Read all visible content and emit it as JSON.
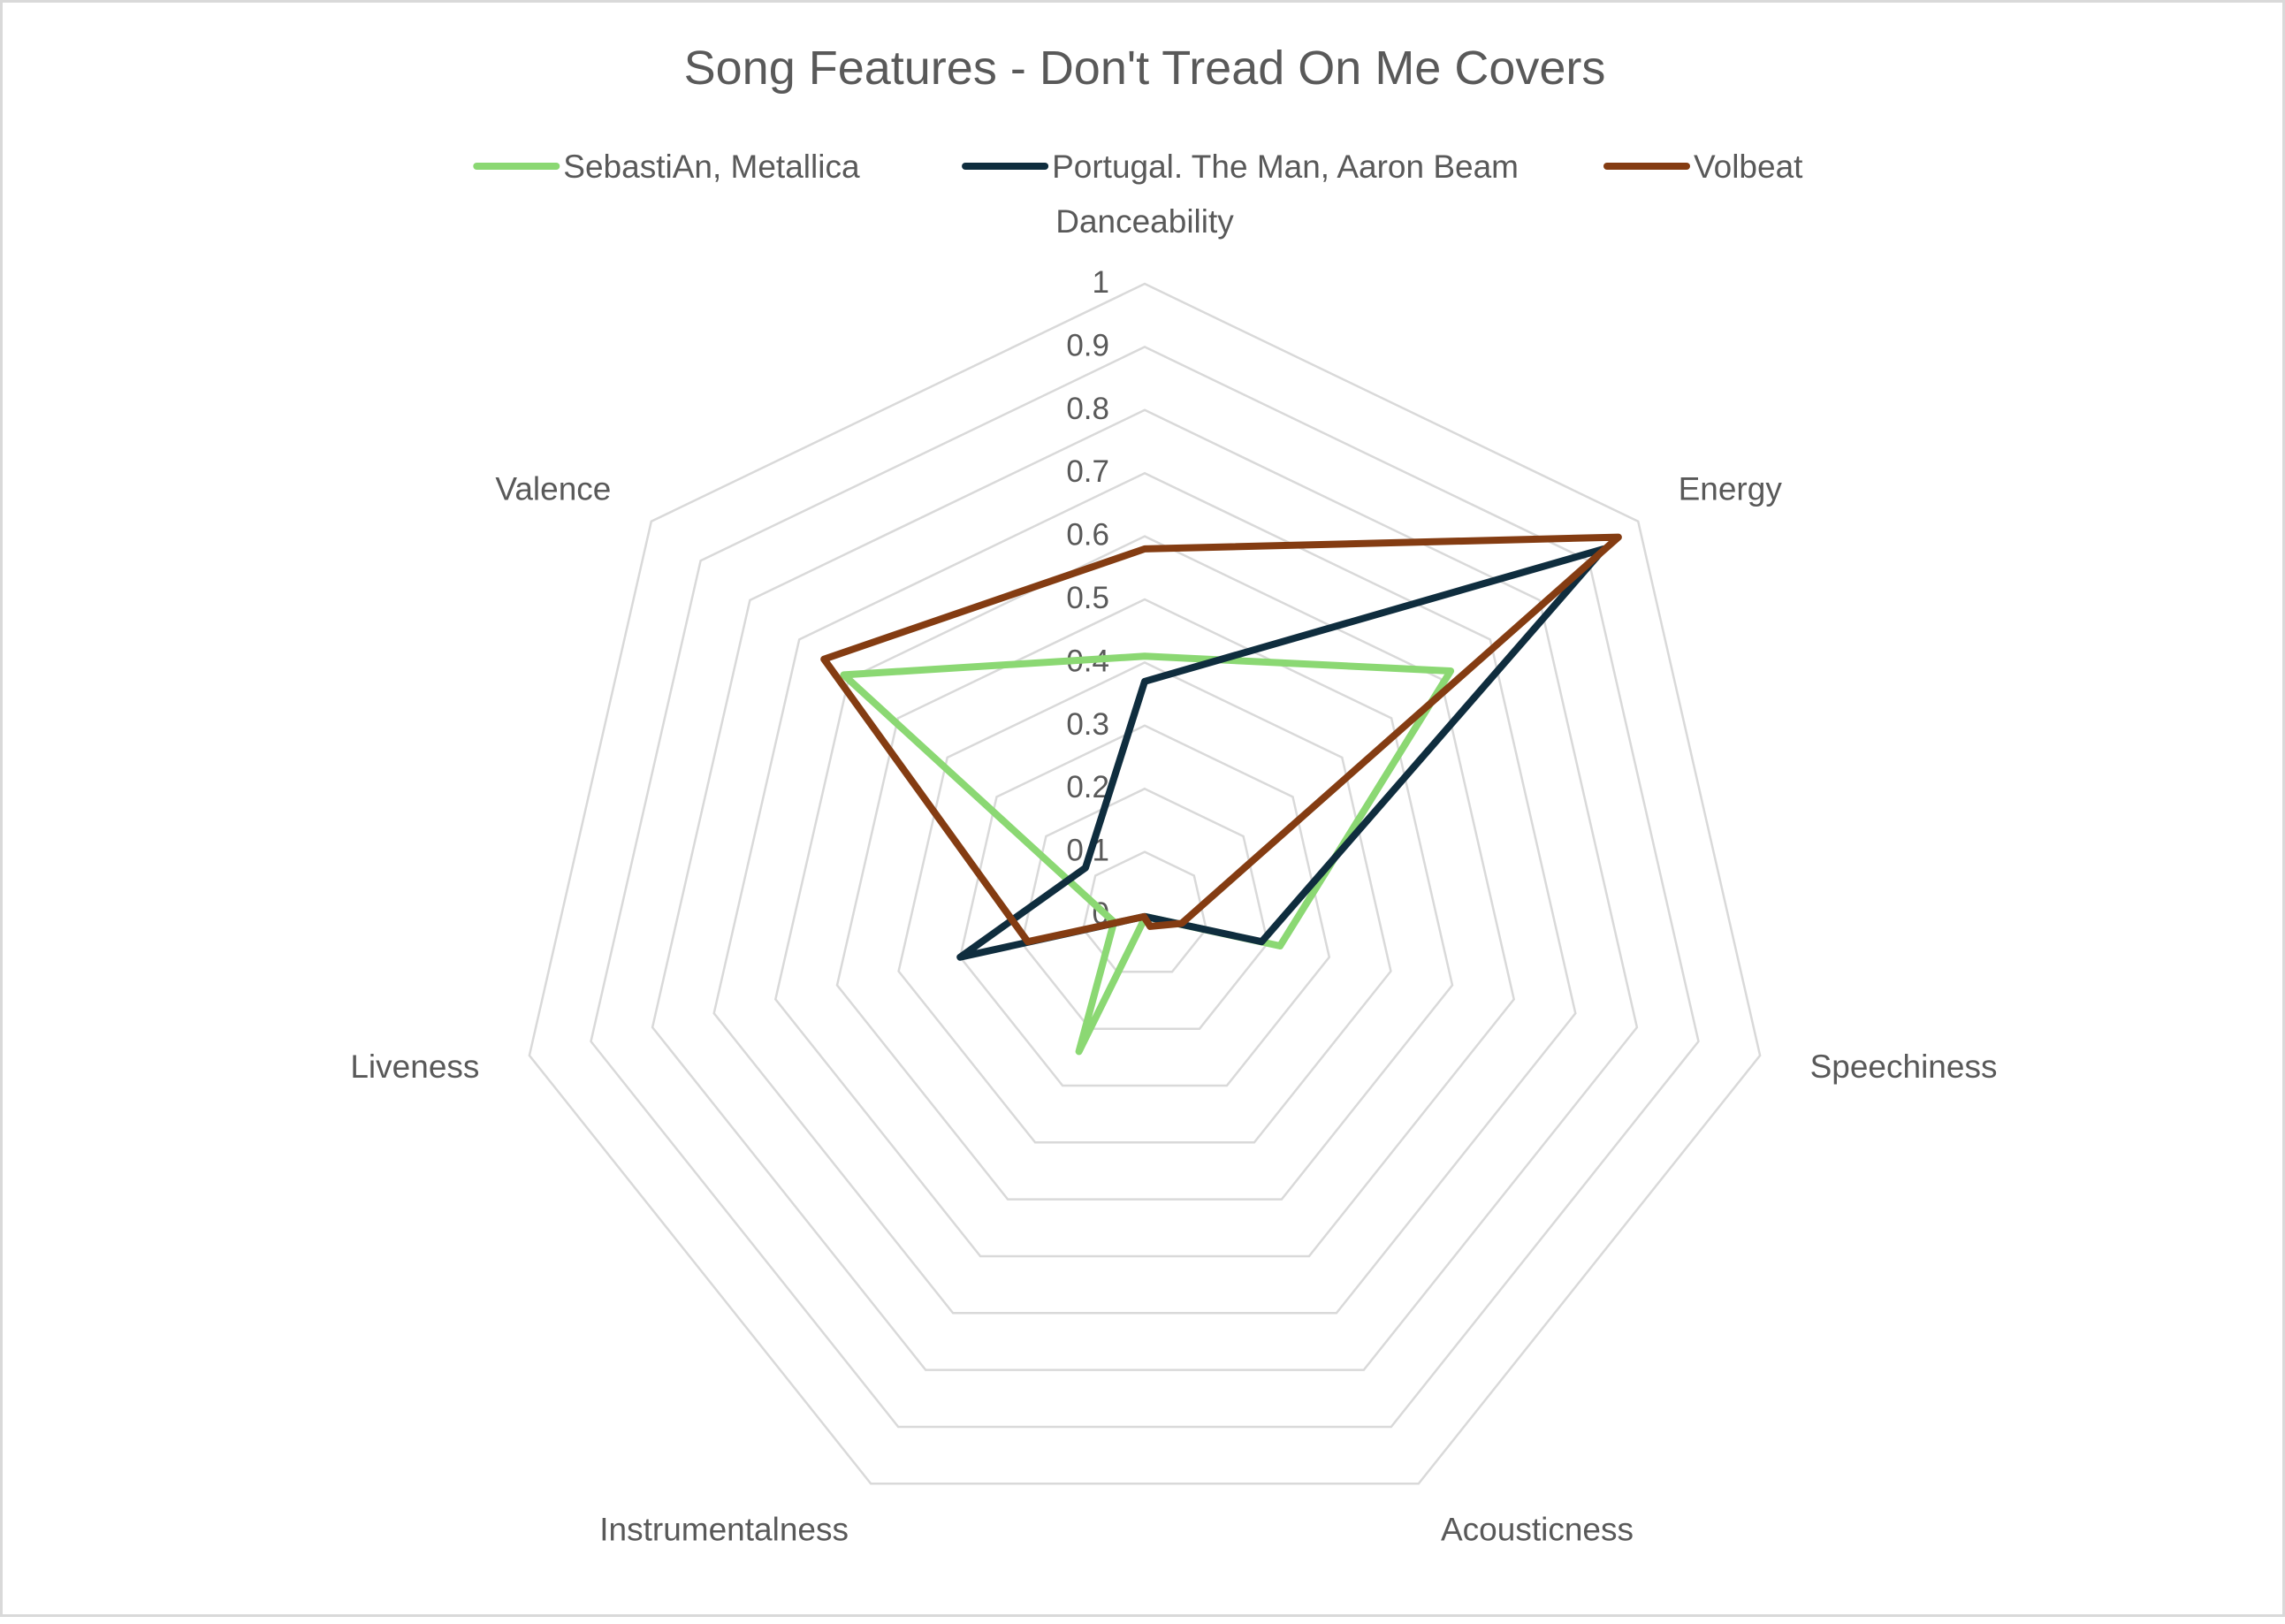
{
  "chart_data": {
    "type": "radar",
    "title": "Song Features - Don't Tread On Me Covers",
    "legend_position": "top",
    "grid": true,
    "axes": [
      "Danceability",
      "Energy",
      "Speechiness",
      "Acousticness",
      "Instrumentalness",
      "Liveness",
      "Valence"
    ],
    "r_range": [
      0,
      1
    ],
    "r_ticks": [
      "0",
      "0.1",
      "0.2",
      "0.3",
      "0.4",
      "0.5",
      "0.6",
      "0.7",
      "0.8",
      "0.9",
      "1"
    ],
    "series": [
      {
        "name": "SebastiAn, Metallica",
        "color": "#8bd873",
        "values": [
          0.41,
          0.62,
          0.22,
          0.003,
          0.24,
          0.05,
          0.61
        ]
      },
      {
        "name": "Portugal. The Man, Aaron Beam",
        "color": "#0f2d3e",
        "values": [
          0.37,
          0.93,
          0.19,
          0.003,
          0.003,
          0.3,
          0.12
        ]
      },
      {
        "name": "Volbeat",
        "color": "#843c12",
        "values": [
          0.58,
          0.96,
          0.06,
          0.02,
          0.003,
          0.19,
          0.65
        ]
      }
    ],
    "colors": {
      "grid": "#d9d9d9",
      "text": "#595959",
      "title": "#595959"
    }
  }
}
